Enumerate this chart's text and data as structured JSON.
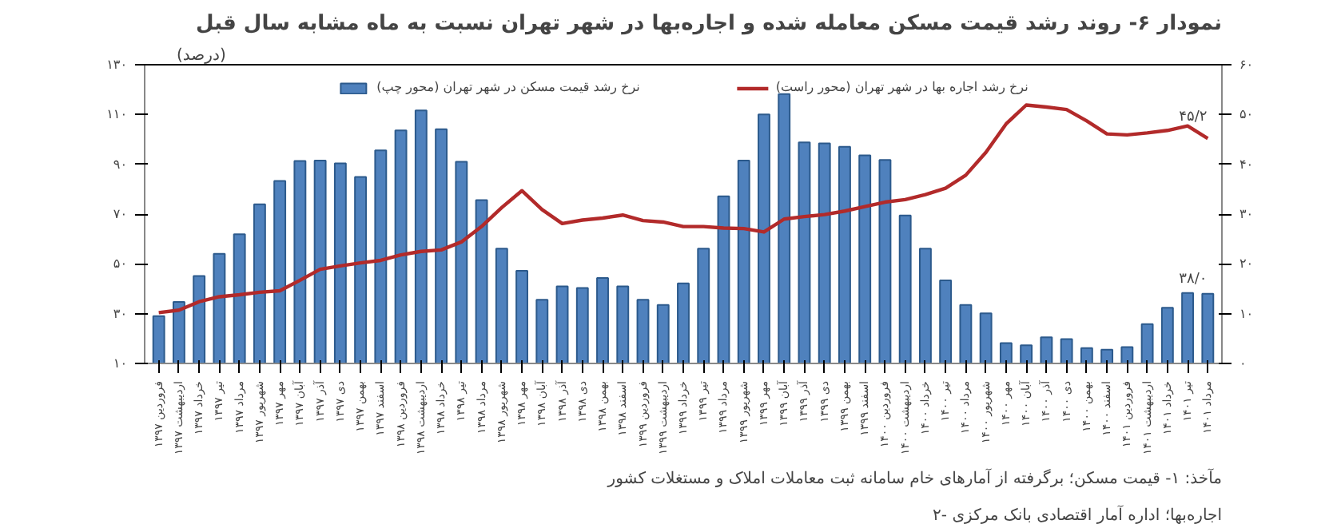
{
  "chart_data": {
    "type": "bar",
    "title": "نمودار ۶- روند رشد قیمت مسکن معامله شده و اجاره‌بها در شهر تهران نسبت به ماه مشابه سال قبل",
    "ylabel": "(درصد)",
    "annotations": [
      "مآخذ: ۱- قیمت مسکن؛ برگرفته از آمارهای خام سامانه ثبت معاملات املاک و مستغلات کشور",
      "۲- اجاره‌بها؛ اداره آمار اقتصادی بانک مرکزی"
    ],
    "categories": [
      "فروردین ۱۳۹۷",
      "اردیبهشت ۱۳۹۷",
      "خرداد ۱۳۹۷",
      "تیر ۱۳۹۷",
      "مرداد ۱۳۹۷",
      "شهریور ۱۳۹۷",
      "مهر ۱۳۹۷",
      "آبان ۱۳۹۷",
      "آذر ۱۳۹۷",
      "دی ۱۳۹۷",
      "بهمن ۱۳۹۷",
      "اسفند ۱۳۹۷",
      "فروردین ۱۳۹۸",
      "اردیبهشت ۱۳۹۸",
      "خرداد ۱۳۹۸",
      "تیر ۱۳۹۸",
      "مرداد ۱۳۹۸",
      "شهریور ۱۳۹۸",
      "مهر ۱۳۹۸",
      "آبان ۱۳۹۸",
      "آذر ۱۳۹۸",
      "دی ۱۳۹۸",
      "بهمن ۱۳۹۸",
      "اسفند ۱۳۹۸",
      "فروردین ۱۳۹۹",
      "اردیبهشت ۱۳۹۹",
      "خرداد ۱۳۹۹",
      "تیر ۱۳۹۹",
      "مرداد ۱۳۹۹",
      "شهریور ۱۳۹۹",
      "مهر ۱۳۹۹",
      "آبان ۱۳۹۹",
      "آذر ۱۳۹۹",
      "دی ۱۳۹۹",
      "بهمن ۱۳۹۹",
      "اسفند ۱۳۹۹",
      "فروردین ۱۴۰۰",
      "اردیبهشت ۱۴۰۰",
      "خرداد ۱۴۰۰",
      "تیر ۱۴۰۰",
      "مرداد ۱۴۰۰",
      "شهریور ۱۴۰۰",
      "مهر ۱۴۰۰",
      "آبان ۱۴۰۰",
      "آذر ۱۴۰۰",
      "دی ۱۴۰۰",
      "بهمن ۱۴۰۰",
      "اسفند ۱۴۰۰",
      "فروردین ۱۴۰۱",
      "اردیبهشت ۱۴۰۱",
      "خرداد ۱۴۰۱",
      "تیر ۱۴۰۱",
      "مرداد ۱۴۰۱"
    ],
    "series": [
      {
        "name": "نرخ رشد قیمت مسکن در شهر تهران (محور چپ)",
        "color": "#4f81bd",
        "values": [
          29.0,
          34.7,
          45.1,
          54.0,
          61.9,
          73.9,
          83.3,
          91.3,
          91.5,
          90.4,
          84.9,
          95.6,
          103.6,
          111.6,
          104.1,
          91.0,
          75.6,
          56.1,
          47.2,
          35.6,
          41.0,
          40.3,
          44.3,
          41.0,
          35.6,
          33.5,
          42.2,
          56.1,
          77.1,
          91.5,
          110,
          118.2,
          98.8,
          98.4,
          97.0,
          93.6,
          91.7,
          69.4,
          56.1,
          43.4,
          33.5,
          30.1,
          18.2,
          17.3,
          20.5,
          19.8,
          16.2,
          15.5,
          16.6,
          25.8,
          32.4,
          38.3,
          38.0
        ],
        "value_labels": [
          null,
          null,
          null,
          null,
          null,
          null,
          null,
          null,
          null,
          null,
          null,
          null,
          null,
          null,
          null,
          null,
          null,
          null,
          null,
          null,
          null,
          null,
          null,
          null,
          null,
          null,
          null,
          null,
          null,
          null,
          null,
          null,
          null,
          null,
          null,
          null,
          null,
          null,
          null,
          null,
          null,
          null,
          null,
          null,
          null,
          null,
          null,
          null,
          null,
          null,
          null,
          null,
          "۳۸/۰"
        ]
      },
      {
        "name": "نرخ رشد اجاره بها در شهر تهران (محور راست)",
        "type": "line",
        "axis": "y2",
        "color": "#b22a2a",
        "values": [
          10.2,
          10.7,
          12.4,
          13.4,
          13.8,
          14.3,
          14.6,
          16.7,
          18.9,
          19.6,
          20.2,
          20.7,
          21.8,
          22.5,
          22.8,
          24.4,
          27.5,
          31.3,
          34.7,
          30.9,
          28.1,
          28.8,
          29.2,
          29.8,
          28.7,
          28.4,
          27.5,
          27.5,
          27.2,
          27.1,
          26.4,
          29.0,
          29.5,
          29.9,
          30.6,
          31.5,
          32.4,
          32.9,
          33.9,
          35.2,
          37.8,
          42.4,
          48.1,
          51.9,
          51.5,
          51.0,
          48.7,
          46.1,
          45.9,
          46.3,
          46.8,
          47.7,
          45.2
        ],
        "value_labels": [
          null,
          null,
          null,
          null,
          null,
          null,
          null,
          null,
          null,
          null,
          null,
          null,
          null,
          null,
          null,
          null,
          null,
          null,
          null,
          null,
          null,
          null,
          null,
          null,
          null,
          null,
          null,
          null,
          null,
          null,
          null,
          null,
          null,
          null,
          null,
          null,
          null,
          null,
          null,
          null,
          null,
          null,
          null,
          null,
          null,
          null,
          null,
          null,
          null,
          null,
          null,
          null,
          "۴۵/۲"
        ]
      }
    ],
    "ylim": [
      10,
      130
    ],
    "yticks": [
      {
        "value": 10,
        "label": "۱۰"
      },
      {
        "value": 30,
        "label": "۳۰"
      },
      {
        "value": 50,
        "label": "۵۰"
      },
      {
        "value": 70,
        "label": "۷۰"
      },
      {
        "value": 90,
        "label": "۹۰"
      },
      {
        "value": 110,
        "label": "۱۱۰"
      },
      {
        "value": 130,
        "label": "۱۳۰"
      }
    ],
    "y2lim": [
      0,
      60
    ],
    "y2ticks": [
      {
        "value": 0,
        "label": "۰"
      },
      {
        "value": 10,
        "label": "۱۰"
      },
      {
        "value": 20,
        "label": "۲۰"
      },
      {
        "value": 30,
        "label": "۳۰"
      },
      {
        "value": 40,
        "label": "۴۰"
      },
      {
        "value": 50,
        "label": "۵۰"
      },
      {
        "value": 60,
        "label": "۶۰"
      }
    ],
    "grid": false,
    "legend": "top"
  }
}
